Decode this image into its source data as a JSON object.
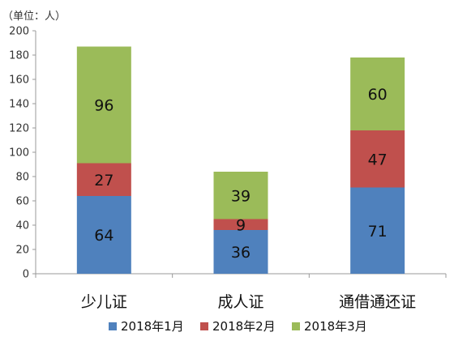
{
  "chart_data": {
    "type": "bar",
    "stacked": true,
    "unit_label": "（单位：人）",
    "categories": [
      "少儿证",
      "成人证",
      "通借通还证"
    ],
    "series": [
      {
        "name": "2018年1月",
        "values": [
          64,
          36,
          71
        ],
        "color": "#4f81bd"
      },
      {
        "name": "2018年2月",
        "values": [
          27,
          9,
          47
        ],
        "color": "#c0504d"
      },
      {
        "name": "2018年3月",
        "values": [
          96,
          39,
          60
        ],
        "color": "#9bbb59"
      }
    ],
    "ylim": [
      0,
      200
    ],
    "yticks": [
      "0",
      "20",
      "40",
      "60",
      "80",
      "100",
      "120",
      "140",
      "160",
      "180",
      "200"
    ],
    "grid": false,
    "legend_position": "bottom",
    "data_labels": true
  }
}
